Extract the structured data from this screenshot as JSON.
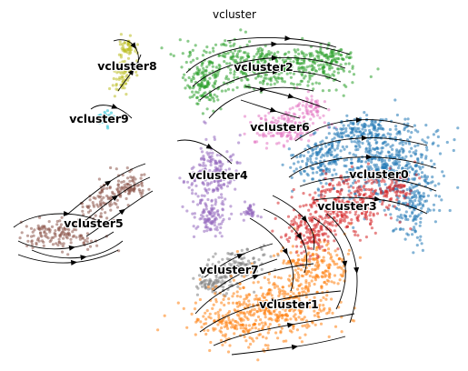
{
  "chart_data": {
    "type": "scatter",
    "title": "vcluster",
    "xlabel": "",
    "ylabel": "",
    "grid": false,
    "axes_visible": false,
    "legend": "on data",
    "overlay": "velocity streamlines",
    "clusters": [
      {
        "name": "vcluster0",
        "color": "#1f77b4",
        "centroid": [
          418,
          188
        ]
      },
      {
        "name": "vcluster1",
        "color": "#ff7f0e",
        "centroid": [
          318,
          335
        ]
      },
      {
        "name": "vcluster2",
        "color": "#2ca02c",
        "centroid": [
          290,
          73
        ]
      },
      {
        "name": "vcluster3",
        "color": "#d62728",
        "centroid": [
          382,
          226
        ]
      },
      {
        "name": "vcluster4",
        "color": "#9467bd",
        "centroid": [
          240,
          193
        ]
      },
      {
        "name": "vcluster5",
        "color": "#8c564b",
        "centroid": [
          103,
          245
        ]
      },
      {
        "name": "vcluster6",
        "color": "#e377c2",
        "centroid": [
          308,
          139
        ]
      },
      {
        "name": "vcluster7",
        "color": "#7f7f7f",
        "centroid": [
          252,
          296
        ]
      },
      {
        "name": "vcluster8",
        "color": "#bcbd22",
        "centroid": [
          140,
          72
        ]
      },
      {
        "name": "vcluster9",
        "color": "#17becf",
        "centroid": [
          110,
          130
        ]
      }
    ]
  }
}
